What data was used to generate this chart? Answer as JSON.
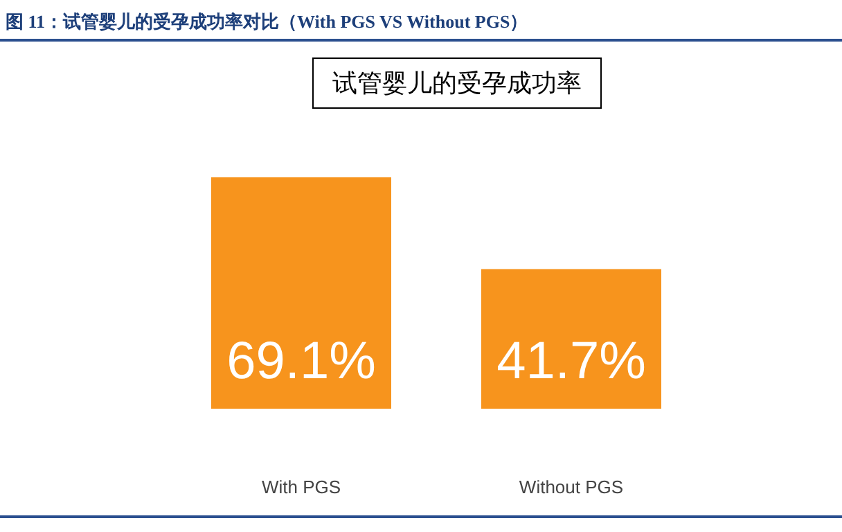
{
  "chart_data": {
    "type": "bar",
    "title": "图 11：试管婴儿的受孕成功率对比（With PGS VS Without PGS）",
    "subtitle": "试管婴儿的受孕成功率",
    "categories": [
      "With PGS",
      "Without PGS"
    ],
    "values": [
      69.1,
      41.7
    ],
    "value_labels": [
      "69.1%",
      "41.7%"
    ],
    "color": "#f7941d",
    "tick_labels": "x"
  }
}
